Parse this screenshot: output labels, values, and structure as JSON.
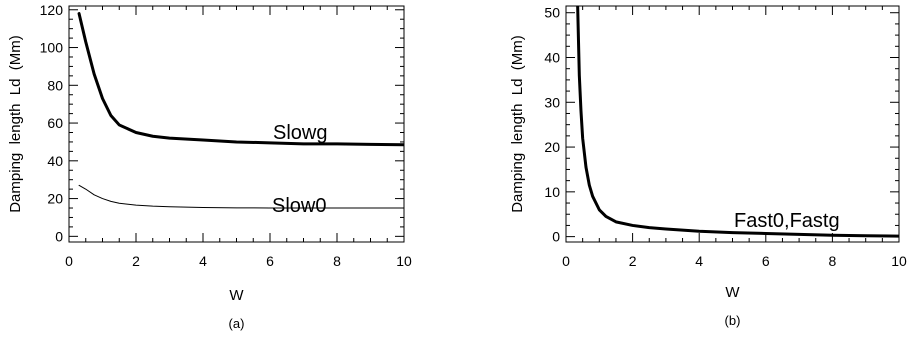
{
  "chart_data": [
    {
      "type": "line",
      "panel_label": "(a)",
      "xlabel": "W",
      "ylabel": "Damping  length  Ld  (Mm)",
      "xlim": [
        0,
        10
      ],
      "ylim": [
        -3,
        122
      ],
      "xticks": [
        "0",
        "2",
        "4",
        "6",
        "8",
        "10"
      ],
      "yticks": [
        "0",
        "20",
        "40",
        "60",
        "80",
        "100",
        "120"
      ],
      "grid": false,
      "series": [
        {
          "name": "Slowg",
          "color": "#000000",
          "line_weight": "thick",
          "x": [
            0.3,
            0.5,
            0.75,
            1.0,
            1.25,
            1.5,
            2.0,
            2.5,
            3.0,
            4.0,
            5.0,
            6.0,
            7.0,
            8.0,
            9.0,
            10.0
          ],
          "y": [
            118,
            103,
            86,
            73,
            64,
            59,
            55,
            53,
            52,
            51,
            50,
            49.5,
            49,
            49,
            48.7,
            48.5
          ]
        },
        {
          "name": "Slow0",
          "color": "#000000",
          "line_weight": "thin",
          "x": [
            0.3,
            0.5,
            0.75,
            1.0,
            1.25,
            1.5,
            2.0,
            2.5,
            3.0,
            4.0,
            5.0,
            6.0,
            7.0,
            8.0,
            9.0,
            10.0
          ],
          "y": [
            27,
            25,
            22,
            20,
            18.5,
            17.5,
            16.5,
            16,
            15.7,
            15.3,
            15.1,
            15,
            15,
            15,
            15,
            15
          ]
        }
      ]
    },
    {
      "type": "line",
      "panel_label": "(b)",
      "xlabel": "W",
      "ylabel": "Damping  length  Ld  (Mm)",
      "xlim": [
        0,
        10
      ],
      "ylim": [
        -1.2,
        51.5
      ],
      "xticks": [
        "0",
        "2",
        "4",
        "6",
        "8",
        "10"
      ],
      "yticks": [
        "0",
        "10",
        "20",
        "30",
        "40",
        "50"
      ],
      "grid": false,
      "series": [
        {
          "name": "Fast0,Fastg",
          "color": "#000000",
          "line_weight": "thick",
          "x": [
            0.35,
            0.4,
            0.45,
            0.5,
            0.6,
            0.7,
            0.8,
            1.0,
            1.2,
            1.5,
            2.0,
            2.5,
            3.0,
            4.0,
            5.0,
            6.0,
            7.0,
            8.0,
            9.0,
            10.0
          ],
          "y": [
            51.5,
            36,
            28,
            22,
            15.5,
            11.5,
            9,
            6,
            4.5,
            3.3,
            2.5,
            2,
            1.7,
            1.2,
            0.9,
            0.7,
            0.5,
            0.3,
            0.2,
            0.1
          ]
        }
      ]
    }
  ]
}
